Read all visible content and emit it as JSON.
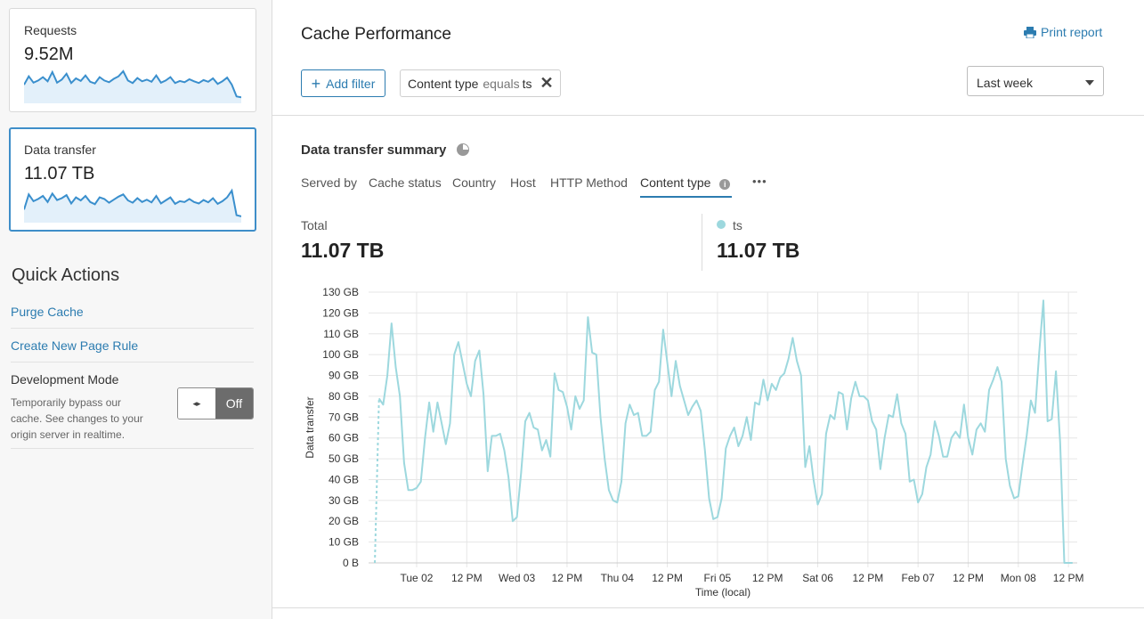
{
  "sidebar": {
    "cards": [
      {
        "label": "Requests",
        "value": "9.52M",
        "sparkline": [
          40,
          60,
          45,
          50,
          58,
          48,
          70,
          45,
          52,
          66,
          44,
          55,
          49,
          62,
          47,
          43,
          58,
          50,
          46,
          54,
          60,
          72,
          50,
          44,
          56,
          48,
          52,
          47,
          62,
          45,
          50,
          58,
          44,
          49,
          46,
          53,
          48,
          44,
          51,
          47,
          55,
          42,
          48,
          57,
          40,
          12,
          10
        ]
      },
      {
        "label": "Data transfer",
        "value": "11.07 TB",
        "sparkline": [
          30,
          70,
          52,
          58,
          66,
          50,
          72,
          55,
          60,
          68,
          46,
          62,
          54,
          66,
          50,
          44,
          62,
          58,
          48,
          56,
          64,
          70,
          54,
          48,
          60,
          50,
          56,
          49,
          66,
          46,
          54,
          62,
          45,
          52,
          50,
          58,
          50,
          46,
          55,
          49,
          60,
          45,
          52,
          62,
          80,
          15,
          12
        ]
      }
    ],
    "quick_actions": {
      "title": "Quick Actions",
      "purge": "Purge Cache",
      "page_rule": "Create New Page Rule",
      "dev_mode": {
        "title": "Development Mode",
        "description": "Temporarily bypass our cache. See changes to your origin server in realtime.",
        "toggle_icon": "◂▸",
        "state": "Off"
      }
    }
  },
  "header": {
    "title": "Cache Performance",
    "print": "Print report",
    "add_filter": "Add filter",
    "filter": {
      "field": "Content type",
      "op": "equals",
      "value": "ts"
    },
    "range": "Last week"
  },
  "summary": {
    "title": "Data transfer summary",
    "tabs": [
      "Served by",
      "Cache status",
      "Country",
      "Host",
      "HTTP Method",
      "Content type"
    ],
    "active_tab": "Content type",
    "more": "•••",
    "total_label": "Total",
    "total_value": "11.07 TB",
    "series_label": "ts",
    "series_value": "11.07 TB"
  },
  "colors": {
    "accent": "#2c7cb0",
    "series": "#9dd8de",
    "spark": "#3a8fcd"
  },
  "chart_data": {
    "type": "line",
    "xlabel": "Time (local)",
    "ylabel": "Data transfer",
    "ylim": [
      0,
      130
    ],
    "yunit": "GB",
    "yticks": [
      "0 B",
      "10 GB",
      "20 GB",
      "30 GB",
      "40 GB",
      "50 GB",
      "60 GB",
      "70 GB",
      "80 GB",
      "90 GB",
      "100 GB",
      "110 GB",
      "120 GB",
      "130 GB"
    ],
    "xlim": [
      "Feb 01 12:30",
      "Feb 08 14:06"
    ],
    "xticks": [
      {
        "label": "Tue 02",
        "at": "Feb 02 00:00"
      },
      {
        "label": "12 PM",
        "at": "Feb 02 12:00"
      },
      {
        "label": "Wed 03",
        "at": "Feb 03 00:00"
      },
      {
        "label": "12 PM",
        "at": "Feb 03 12:00"
      },
      {
        "label": "Thu 04",
        "at": "Feb 04 00:00"
      },
      {
        "label": "12 PM",
        "at": "Feb 04 12:00"
      },
      {
        "label": "Fri 05",
        "at": "Feb 05 00:00"
      },
      {
        "label": "12 PM",
        "at": "Feb 05 12:00"
      },
      {
        "label": "Sat 06",
        "at": "Feb 06 00:00"
      },
      {
        "label": "12 PM",
        "at": "Feb 06 12:00"
      },
      {
        "label": "Feb 07",
        "at": "Feb 07 00:00"
      },
      {
        "label": "12 PM",
        "at": "Feb 07 12:00"
      },
      {
        "label": "Mon 08",
        "at": "Feb 08 00:00"
      },
      {
        "label": "12 PM",
        "at": "Feb 08 12:00"
      }
    ],
    "grid": true,
    "incomplete_start": {
      "x": "Feb 01 14:00",
      "y": 0
    },
    "series": [
      {
        "name": "ts",
        "x_start": "Feb 01 15:00",
        "x_step_hours": 1,
        "values": [
          79,
          76,
          90,
          115,
          94,
          80,
          48,
          35,
          35,
          36,
          39,
          60,
          77,
          63,
          77,
          67,
          57,
          67,
          100,
          106,
          96,
          86,
          80,
          97,
          102,
          81,
          44,
          61,
          61,
          62,
          54,
          41,
          20,
          22,
          43,
          68,
          72,
          65,
          64,
          54,
          59,
          51,
          91,
          83,
          82,
          75,
          64,
          80,
          74,
          78,
          118,
          101,
          100,
          70,
          50,
          35,
          30,
          29,
          39,
          67,
          76,
          71,
          72,
          61,
          61,
          63,
          83,
          87,
          112,
          96,
          80,
          97,
          85,
          78,
          71,
          75,
          78,
          73,
          54,
          31,
          21,
          22,
          31,
          55,
          61,
          65,
          56,
          61,
          70,
          59,
          77,
          76,
          88,
          78,
          86,
          83,
          89,
          91,
          98,
          108,
          97,
          90,
          46,
          56,
          40,
          28,
          33,
          62,
          71,
          69,
          82,
          81,
          64,
          79,
          87,
          80,
          80,
          78,
          68,
          64,
          45,
          60,
          71,
          70,
          81,
          67,
          62,
          39,
          40,
          29,
          33,
          46,
          52,
          68,
          61,
          51,
          51,
          60,
          63,
          60,
          76,
          60,
          52,
          64,
          67,
          63,
          83,
          88,
          94,
          87,
          50,
          37,
          31,
          32,
          47,
          61,
          78,
          72,
          101,
          126,
          68,
          69,
          92,
          58,
          0,
          0,
          0
        ]
      }
    ]
  }
}
